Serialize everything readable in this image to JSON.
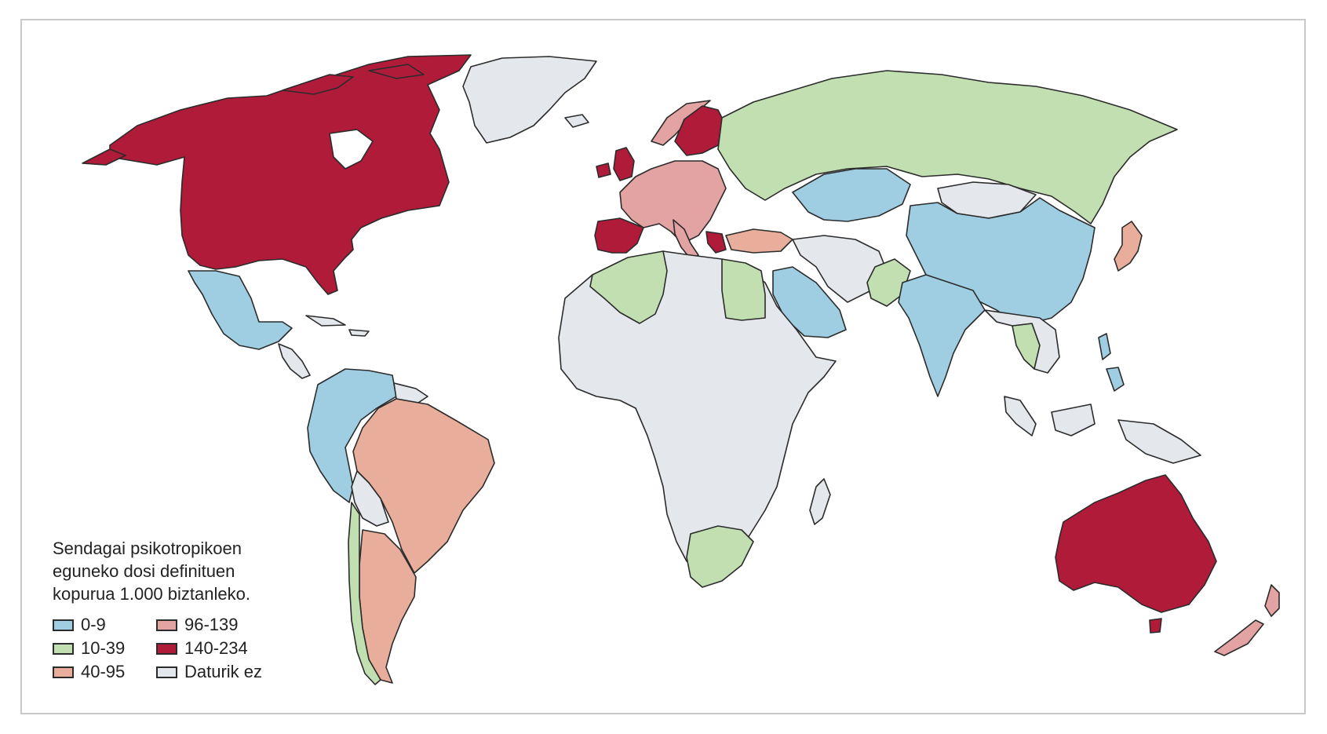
{
  "legend": {
    "title_lines": [
      "Sendagai psikotropikoen",
      "eguneko dosi definituen",
      "kopurua 1.000 biztanleko."
    ],
    "items": [
      {
        "label": "0-9",
        "color": "#9fcde2"
      },
      {
        "label": "96-139",
        "color": "#e2a3a2"
      },
      {
        "label": "10-39",
        "color": "#c2dfb2"
      },
      {
        "label": "140-234",
        "color": "#b01b3a"
      },
      {
        "label": "40-95",
        "color": "#e8ae9b"
      },
      {
        "label": "Daturik ez",
        "color": "#e4e8ec"
      }
    ]
  },
  "regions": {
    "canada_usa": "140-234",
    "greenland": "Daturik ez",
    "mexico": "0-9",
    "colombia_venezuela_ecuador_peru": "0-9",
    "brazil_argentina": "40-95",
    "chile": "10-39",
    "western_europe": "96-139",
    "spain_uk_scandinavia": "140-234",
    "russia_kazakhstan": "10-39",
    "china_india_saudi": "0-9",
    "africa": "Daturik ez",
    "algeria_egypt_south_africa": "10-39",
    "turkey": "40-95",
    "japan": "40-95",
    "australia": "140-234",
    "new_zealand": "96-139",
    "southeast_asia": "Daturik ez"
  }
}
